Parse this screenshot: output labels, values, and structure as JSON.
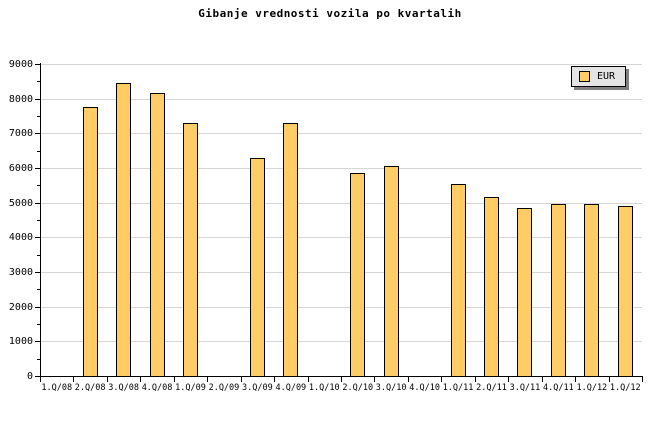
{
  "title": "Gibanje vrednosti vozila po kvartalih",
  "legend": {
    "label": "EUR"
  },
  "colors": {
    "background": "#FFFFFF",
    "bar_fill": "#FFCC66",
    "bar_border": "#000000",
    "gridline": "#D6D6D6",
    "axis": "#000000",
    "text": "#000000",
    "legend_bg": "#E4E4E4",
    "legend_border": "#000000",
    "legend_shadow": "#808080"
  },
  "chart_data": {
    "type": "bar",
    "title": "Gibanje vrednosti vozila po kvartalih",
    "categories": [
      "1.Q/08",
      "2.Q/08",
      "3.Q/08",
      "4.Q/08",
      "1.Q/09",
      "2.Q/09",
      "3.Q/09",
      "4.Q/09",
      "1.Q/10",
      "2.Q/10",
      "3.Q/10",
      "4.Q/10",
      "1.Q/11",
      "2.Q/11",
      "3.Q/11",
      "4.Q/11",
      "1.Q/12",
      "1.Q/12"
    ],
    "series": [
      {
        "name": "EUR",
        "values": [
          null,
          7750,
          8450,
          8150,
          7300,
          null,
          6300,
          7300,
          null,
          5850,
          6050,
          null,
          5550,
          5150,
          4850,
          4950,
          4950,
          4900
        ]
      }
    ],
    "xlabel": "",
    "ylabel": "",
    "ylim": [
      0,
      9000
    ],
    "ytick_interval": 1000,
    "yminor_tick_interval": 500,
    "yticklabels": [
      "0",
      "1000",
      "2000",
      "3000",
      "4000",
      "5000",
      "6000",
      "7000",
      "8000",
      "9000"
    ],
    "grid": true,
    "legend_position": "top-right",
    "bars_missing_at": [
      "1.Q/08",
      "2.Q/09",
      "1.Q/10",
      "4.Q/10"
    ]
  }
}
